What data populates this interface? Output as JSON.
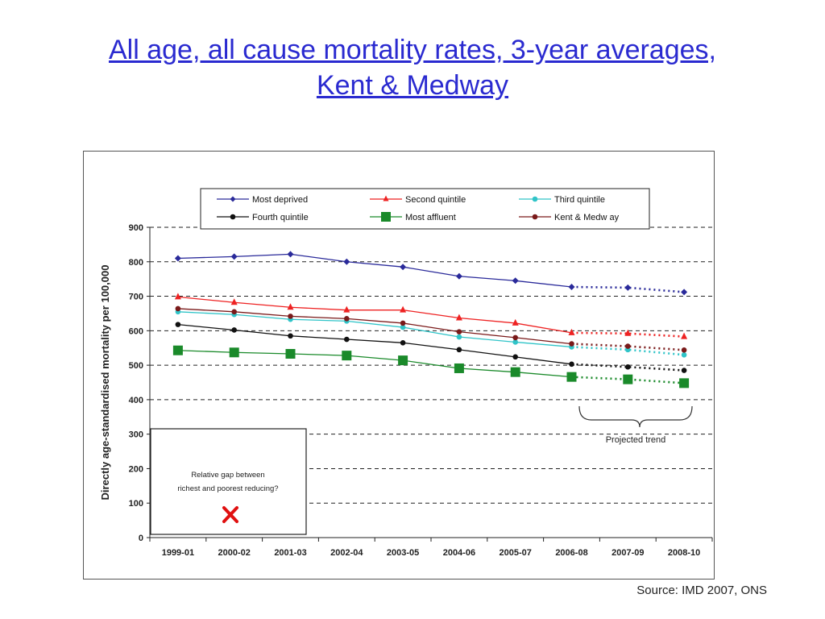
{
  "slide": {
    "title_line1": "All age, all cause mortality rates, 3-year averages,",
    "title_line2": "Kent & Medway",
    "source": "Source: IMD 2007, ONS"
  },
  "chart_data": {
    "type": "line",
    "title": "",
    "xlabel": "",
    "ylabel": "Directly age-standardised mortality per 100,000",
    "ylim": [
      0,
      900
    ],
    "yticks": [
      0,
      100,
      200,
      300,
      400,
      500,
      600,
      700,
      800,
      900
    ],
    "categories": [
      "1999-01",
      "2000-02",
      "2001-03",
      "2002-04",
      "2003-05",
      "2004-06",
      "2005-07",
      "2006-08",
      "2007-09",
      "2008-10"
    ],
    "projected_from_index": 7,
    "grid": "horizontal dashed",
    "legend_position": "top",
    "series": [
      {
        "name": "Most deprived",
        "color": "#2a2a9a",
        "marker": "diamond",
        "values": [
          810,
          815,
          822,
          800,
          785,
          758,
          745,
          727,
          725,
          712
        ]
      },
      {
        "name": "Second quintile",
        "color": "#ee2222",
        "marker": "triangle",
        "values": [
          698,
          682,
          668,
          660,
          660,
          637,
          622,
          594,
          592,
          583
        ]
      },
      {
        "name": "Third quintile",
        "color": "#30c4c8",
        "marker": "circle",
        "values": [
          655,
          647,
          633,
          628,
          610,
          582,
          567,
          553,
          545,
          530
        ]
      },
      {
        "name": "Fourth quintile",
        "color": "#111111",
        "marker": "circle",
        "values": [
          618,
          602,
          585,
          575,
          565,
          545,
          524,
          503,
          495,
          485
        ]
      },
      {
        "name": "Most affluent",
        "color": "#1a8a2a",
        "marker": "square",
        "values": [
          543,
          537,
          533,
          528,
          514,
          491,
          480,
          466,
          459,
          448
        ]
      },
      {
        "name": "Kent & Medw ay",
        "color": "#7a1a1a",
        "marker": "circle",
        "values": [
          664,
          655,
          642,
          635,
          622,
          597,
          580,
          562,
          555,
          544
        ]
      }
    ],
    "annotations": {
      "projected_trend": "Projected trend",
      "gap_box_line1": "Relative gap between",
      "gap_box_line2": "richest and poorest reducing?"
    }
  }
}
